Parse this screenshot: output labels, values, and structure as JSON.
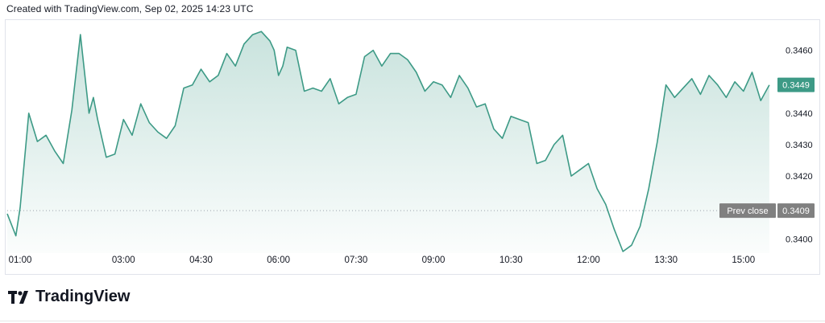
{
  "header": {
    "text": "Created with TradingView.com, Sep 02, 2025 14:23 UTC"
  },
  "brand": {
    "name": "TradingView",
    "icon": "tradingview-logo-icon"
  },
  "colors": {
    "line": "#3d9a86",
    "fill_top": "#3d9a86",
    "price_label_bg": "#3d9a86",
    "prev_close_bg": "#808080",
    "axis_text": "#131722"
  },
  "chart_data": {
    "type": "area",
    "title": "",
    "xlabel": "",
    "ylabel": "",
    "x_ticks": [
      "01:00",
      "03:00",
      "04:30",
      "06:00",
      "07:30",
      "09:00",
      "10:30",
      "12:00",
      "13:30",
      "15:00"
    ],
    "y_ticks": [
      "0.3460",
      "0.3450",
      "0.3440",
      "0.3430",
      "0.3420",
      "0.3410",
      "0.3400"
    ],
    "ylim": [
      0.33955,
      0.34686
    ],
    "x_range": [
      "00:45",
      "15:32"
    ],
    "grid": false,
    "axis_position": "right",
    "last_price": {
      "value": 0.3449,
      "label": "0.3449"
    },
    "prev_close": {
      "value": 0.3409,
      "label": "0.3409",
      "text": "Prev close"
    },
    "series": [
      {
        "x": [
          "00:45",
          "00:55",
          "01:00",
          "01:10",
          "01:20",
          "01:30",
          "01:40",
          "01:50",
          "02:00",
          "02:10",
          "02:20",
          "02:25",
          "02:30",
          "02:40",
          "02:50",
          "03:00",
          "03:10",
          "03:20",
          "03:30",
          "03:40",
          "03:50",
          "04:00",
          "04:10",
          "04:20",
          "04:30",
          "04:40",
          "04:50",
          "05:00",
          "05:10",
          "05:20",
          "05:30",
          "05:40",
          "05:50",
          "05:55",
          "06:00",
          "06:05",
          "06:10",
          "06:20",
          "06:30",
          "06:40",
          "06:50",
          "07:00",
          "07:10",
          "07:20",
          "07:30",
          "07:40",
          "07:50",
          "08:00",
          "08:10",
          "08:20",
          "08:30",
          "08:40",
          "08:50",
          "09:00",
          "09:10",
          "09:20",
          "09:30",
          "09:40",
          "09:50",
          "10:00",
          "10:10",
          "10:20",
          "10:30",
          "10:40",
          "10:50",
          "11:00",
          "11:10",
          "11:20",
          "11:30",
          "11:40",
          "11:50",
          "12:00",
          "12:10",
          "12:20",
          "12:30",
          "12:40",
          "12:50",
          "13:00",
          "13:10",
          "13:20",
          "13:30",
          "13:35",
          "13:40",
          "13:50",
          "14:00",
          "14:10",
          "14:20",
          "14:30",
          "14:40",
          "14:50",
          "15:00",
          "15:10",
          "15:20",
          "15:30"
        ],
        "values": [
          0.3408,
          0.3401,
          0.341,
          0.344,
          0.3431,
          0.3433,
          0.3428,
          0.3424,
          0.3441,
          0.3465,
          0.344,
          0.3445,
          0.3438,
          0.3426,
          0.3427,
          0.3438,
          0.3433,
          0.3443,
          0.3437,
          0.3434,
          0.3432,
          0.3436,
          0.3448,
          0.3449,
          0.3454,
          0.345,
          0.3452,
          0.3459,
          0.3455,
          0.3462,
          0.3465,
          0.3466,
          0.3463,
          0.346,
          0.3452,
          0.3455,
          0.3461,
          0.346,
          0.3447,
          0.3448,
          0.3447,
          0.3451,
          0.3443,
          0.3445,
          0.3446,
          0.3458,
          0.346,
          0.3455,
          0.3459,
          0.3459,
          0.3457,
          0.3453,
          0.3447,
          0.345,
          0.3449,
          0.3445,
          0.3452,
          0.3448,
          0.3442,
          0.3443,
          0.3435,
          0.3432,
          0.3439,
          0.3438,
          0.3437,
          0.3424,
          0.3425,
          0.343,
          0.3433,
          0.342,
          0.3422,
          0.3424,
          0.3416,
          0.3411,
          0.3403,
          0.3396,
          0.3398,
          0.3404,
          0.3416,
          0.3431,
          0.3449,
          0.3447,
          0.3445,
          0.3448,
          0.3451,
          0.3446,
          0.3452,
          0.3449,
          0.3445,
          0.345,
          0.3447,
          0.3453,
          0.3444,
          0.3449
        ]
      }
    ]
  }
}
